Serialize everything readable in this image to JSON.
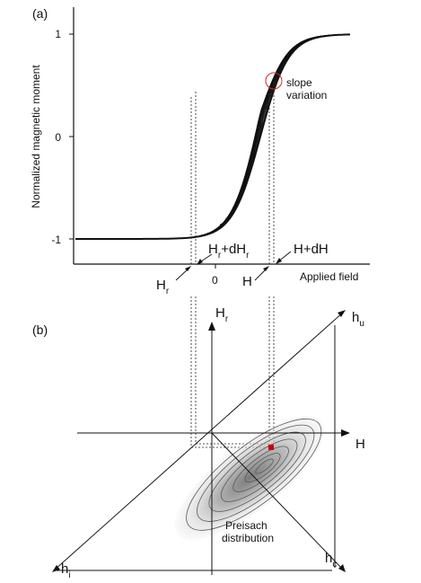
{
  "panel_a": {
    "panel_label": "(a)",
    "y_axis_title": "Normalized magnetic moment",
    "y_ticks": [
      "1",
      "0",
      "-1"
    ],
    "x_axis_title": "Applied field",
    "x_tick_zero": "0",
    "hr_label": "H",
    "hr_sub": "r",
    "hr_dhr_label": "H",
    "hr_dhr_sub1": "r",
    "hr_dhr_mid": "+dH",
    "hr_dhr_sub2": "r",
    "h_label": "H",
    "hdh_label": "H+dH",
    "slope_note_line1": "slope",
    "slope_note_line2": "variation",
    "accent_color": "#d62728"
  },
  "panel_b": {
    "panel_label": "(b)",
    "hr_axis_label": "H",
    "hr_axis_sub": "r",
    "h_axis_label": "H",
    "hu_label": "h",
    "hu_sub": "u",
    "hi_label": "h",
    "hi_sub": "i",
    "hc_label": "h",
    "hc_sub": "c",
    "dist_line1": "Preisach",
    "dist_line2": "distribution",
    "marker_color": "#cc0000"
  }
}
